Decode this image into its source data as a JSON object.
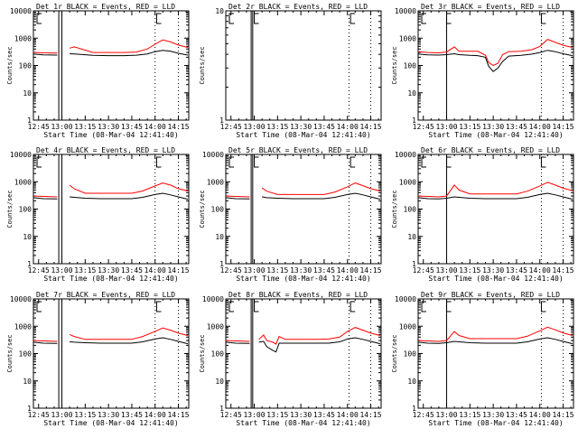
{
  "figure": {
    "xlabel": "Start Time (08-Mar-04 12:41:40)",
    "ylabel": "Counts/sec"
  },
  "chart_data": [
    {
      "type": "line",
      "title": "Det 1r BLACK = Events, RED = LLD",
      "xlabel": "Start Time (08-Mar-04 12:41:40)",
      "ylabel": "Counts/sec",
      "y_scale": "log",
      "ylim": [
        1,
        10000
      ],
      "y_ticks": [
        "1",
        "10",
        "100",
        "1000",
        "10000"
      ],
      "xlim": [
        "12:41:40",
        "14:21:40"
      ],
      "x_ticks": [
        "12:45",
        "13:00",
        "13:15",
        "13:30",
        "13:45",
        "14:00",
        "14:15"
      ],
      "x": [
        "12:41:40",
        "12:48",
        "12:57",
        "13:00",
        "13:05",
        "13:08",
        "13:20",
        "13:30",
        "13:40",
        "13:48",
        "13:55",
        "14:00",
        "14:05",
        "14:10",
        "14:15",
        "14:21"
      ],
      "series": [
        {
          "name": "Events",
          "color": "#000000",
          "values": [
            260,
            245,
            240,
            null,
            270,
            265,
            235,
            230,
            230,
            238,
            265,
            320,
            360,
            330,
            280,
            240
          ]
        },
        {
          "name": "LLD",
          "color": "#ff0000",
          "values": [
            300,
            290,
            285,
            null,
            430,
            480,
            300,
            300,
            300,
            310,
            400,
            600,
            860,
            730,
            560,
            460
          ]
        }
      ],
      "vlines_solid": [
        "12:58",
        "13:00"
      ],
      "vlines_dotted": [
        "14:00",
        "14:15"
      ],
      "markers": [
        "12:44",
        "14:01"
      ]
    },
    {
      "type": "line",
      "title": "Det 2r BLACK = Events, RED = LLD",
      "xlabel": "Start Time (08-Mar-04 12:41:40)",
      "ylabel": "Counts/sec",
      "y_scale": "log",
      "ylim": [
        1,
        10
      ],
      "y_ticks": [
        "1",
        "10"
      ],
      "xlim": [
        "12:41:40",
        "14:21:40"
      ],
      "x_ticks": [
        "12:45",
        "13:00",
        "13:15",
        "13:30",
        "13:45",
        "14:00",
        "14:15"
      ],
      "x": [],
      "series": [],
      "vlines_solid": [
        "12:58",
        "12:59"
      ],
      "vlines_dotted": [
        "14:01",
        "14:15"
      ],
      "markers": [
        "12:44",
        "13:00",
        "14:02"
      ]
    },
    {
      "type": "line",
      "title": "Det 3r BLACK = Events, RED = LLD",
      "xlabel": "Start Time (08-Mar-04 12:41:40)",
      "ylabel": "Counts/sec",
      "y_scale": "log",
      "ylim": [
        1,
        10000
      ],
      "y_ticks": [
        "1",
        "10",
        "100",
        "1000",
        "10000"
      ],
      "xlim": [
        "12:41:40",
        "14:21:40"
      ],
      "x_ticks": [
        "12:45",
        "13:00",
        "13:15",
        "13:30",
        "13:45",
        "14:00",
        "14:15"
      ],
      "x": [
        "12:41:40",
        "12:48",
        "12:55",
        "13:00",
        "13:05",
        "13:08",
        "13:15",
        "13:20",
        "13:25",
        "13:27",
        "13:30",
        "13:33",
        "13:36",
        "13:40",
        "13:48",
        "13:55",
        "14:00",
        "14:05",
        "14:10",
        "14:15",
        "14:21"
      ],
      "series": [
        {
          "name": "Events",
          "color": "#000000",
          "values": [
            260,
            245,
            240,
            250,
            270,
            250,
            235,
            230,
            200,
            95,
            60,
            80,
            140,
            220,
            235,
            260,
            300,
            360,
            320,
            270,
            230
          ]
        },
        {
          "name": "LLD",
          "color": "#ff0000",
          "values": [
            320,
            300,
            290,
            310,
            480,
            330,
            330,
            330,
            240,
            130,
            100,
            120,
            250,
            320,
            330,
            380,
            500,
            900,
            700,
            550,
            460
          ]
        }
      ],
      "vlines_solid": [
        "13:00"
      ],
      "vlines_dotted": [
        "14:01",
        "14:15"
      ],
      "markers": [
        "12:44",
        "13:00",
        "14:01"
      ]
    },
    {
      "type": "line",
      "title": "Det 4r BLACK = Events, RED = LLD",
      "xlabel": "Start Time (08-Mar-04 12:41:40)",
      "ylabel": "Counts/sec",
      "y_scale": "log",
      "ylim": [
        1,
        10000
      ],
      "y_ticks": [
        "1",
        "10",
        "100",
        "1000",
        "10000"
      ],
      "xlim": [
        "12:41:40",
        "14:21:40"
      ],
      "x_ticks": [
        "12:45",
        "13:00",
        "13:15",
        "13:30",
        "13:45",
        "14:00",
        "14:15"
      ],
      "x": [
        "12:41:40",
        "12:48",
        "12:57",
        "13:00",
        "13:05",
        "13:08",
        "13:15",
        "13:25",
        "13:35",
        "13:45",
        "13:52",
        "14:00",
        "14:05",
        "14:10",
        "14:15",
        "14:21"
      ],
      "series": [
        {
          "name": "Events",
          "color": "#000000",
          "values": [
            260,
            240,
            235,
            null,
            280,
            270,
            250,
            240,
            240,
            240,
            270,
            340,
            380,
            330,
            280,
            230
          ]
        },
        {
          "name": "LLD",
          "color": "#ff0000",
          "values": [
            300,
            290,
            280,
            null,
            750,
            550,
            380,
            380,
            380,
            380,
            460,
            700,
            900,
            750,
            560,
            460
          ]
        }
      ],
      "vlines_solid": [
        "12:58",
        "13:00"
      ],
      "vlines_dotted": [
        "14:00",
        "14:15"
      ],
      "markers": [
        "12:44",
        "14:01"
      ]
    },
    {
      "type": "line",
      "title": "Det 5r BLACK = Events, RED = LLD",
      "xlabel": "Start Time (08-Mar-04 12:41:40)",
      "ylabel": "Counts/sec",
      "y_scale": "log",
      "ylim": [
        1,
        10000
      ],
      "y_ticks": [
        "1",
        "10",
        "100",
        "1000",
        "10000"
      ],
      "xlim": [
        "12:41:40",
        "14:21:40"
      ],
      "x_ticks": [
        "12:45",
        "13:00",
        "13:15",
        "13:30",
        "13:45",
        "14:00",
        "14:15"
      ],
      "x": [
        "12:41:40",
        "12:48",
        "12:57",
        "13:00",
        "13:05",
        "13:08",
        "13:15",
        "13:25",
        "13:35",
        "13:45",
        "13:52",
        "14:00",
        "14:05",
        "14:10",
        "14:15",
        "14:21"
      ],
      "series": [
        {
          "name": "Events",
          "color": "#000000",
          "values": [
            260,
            240,
            235,
            null,
            280,
            260,
            250,
            240,
            240,
            240,
            270,
            340,
            380,
            330,
            280,
            230
          ]
        },
        {
          "name": "LLD",
          "color": "#ff0000",
          "values": [
            300,
            290,
            280,
            null,
            600,
            450,
            340,
            340,
            340,
            340,
            420,
            650,
            900,
            720,
            560,
            460
          ]
        }
      ],
      "vlines_solid": [
        "12:58",
        "12:59"
      ],
      "vlines_dotted": [
        "14:01",
        "14:15"
      ],
      "markers": [
        "12:44",
        "13:00",
        "14:02"
      ]
    },
    {
      "type": "line",
      "title": "Det 6r BLACK = Events, RED = LLD",
      "xlabel": "Start Time (08-Mar-04 12:41:40)",
      "ylabel": "Counts/sec",
      "y_scale": "log",
      "ylim": [
        1,
        10000
      ],
      "y_ticks": [
        "1",
        "10",
        "100",
        "1000",
        "10000"
      ],
      "xlim": [
        "12:41:40",
        "14:21:40"
      ],
      "x_ticks": [
        "12:45",
        "13:00",
        "13:15",
        "13:30",
        "13:45",
        "14:00",
        "14:15"
      ],
      "x": [
        "12:41:40",
        "12:48",
        "12:55",
        "13:00",
        "13:05",
        "13:08",
        "13:15",
        "13:25",
        "13:35",
        "13:45",
        "13:52",
        "14:00",
        "14:05",
        "14:10",
        "14:15",
        "14:21"
      ],
      "series": [
        {
          "name": "Events",
          "color": "#000000",
          "values": [
            260,
            240,
            235,
            250,
            280,
            270,
            250,
            240,
            240,
            240,
            270,
            340,
            380,
            330,
            280,
            230
          ]
        },
        {
          "name": "LLD",
          "color": "#ff0000",
          "values": [
            300,
            290,
            280,
            300,
            760,
            500,
            360,
            360,
            360,
            360,
            450,
            700,
            950,
            760,
            580,
            470
          ]
        }
      ],
      "vlines_solid": [
        "13:00"
      ],
      "vlines_dotted": [
        "14:01",
        "14:15"
      ],
      "markers": [
        "12:44",
        "13:00",
        "14:01"
      ]
    },
    {
      "type": "line",
      "title": "Det 7r BLACK = Events, RED = LLD",
      "xlabel": "Start Time (08-Mar-04 12:41:40)",
      "ylabel": "Counts/sec",
      "y_scale": "log",
      "ylim": [
        1,
        10000
      ],
      "y_ticks": [
        "1",
        "10",
        "100",
        "1000",
        "10000"
      ],
      "xlim": [
        "12:41:40",
        "14:21:40"
      ],
      "x_ticks": [
        "12:45",
        "13:00",
        "13:15",
        "13:30",
        "13:45",
        "14:00",
        "14:15"
      ],
      "x": [
        "12:41:40",
        "12:48",
        "12:57",
        "13:00",
        "13:05",
        "13:08",
        "13:15",
        "13:25",
        "13:35",
        "13:45",
        "13:52",
        "14:00",
        "14:05",
        "14:10",
        "14:15",
        "14:21"
      ],
      "series": [
        {
          "name": "Events",
          "color": "#000000",
          "values": [
            260,
            240,
            235,
            null,
            270,
            260,
            250,
            240,
            240,
            240,
            270,
            340,
            380,
            330,
            280,
            230
          ]
        },
        {
          "name": "LLD",
          "color": "#ff0000",
          "values": [
            300,
            290,
            280,
            null,
            500,
            420,
            330,
            330,
            330,
            330,
            420,
            650,
            860,
            720,
            560,
            460
          ]
        }
      ],
      "vlines_solid": [
        "12:58",
        "13:00"
      ],
      "vlines_dotted": [
        "14:00",
        "14:15"
      ],
      "markers": [
        "12:44",
        "14:01"
      ]
    },
    {
      "type": "line",
      "title": "Det 8r BLACK = Events, RED = LLD",
      "xlabel": "Start Time (08-Mar-04 12:41:40)",
      "ylabel": "Counts/sec",
      "y_scale": "log",
      "ylim": [
        1,
        10000
      ],
      "y_ticks": [
        "1",
        "10",
        "100",
        "1000",
        "10000"
      ],
      "xlim": [
        "12:41:40",
        "14:21:40"
      ],
      "x_ticks": [
        "12:45",
        "13:00",
        "13:15",
        "13:30",
        "13:45",
        "14:00",
        "14:15"
      ],
      "x": [
        "12:41:40",
        "12:48",
        "12:57",
        "13:00",
        "13:03",
        "13:06",
        "13:08",
        "13:12",
        "13:14",
        "13:16",
        "13:20",
        "13:30",
        "13:40",
        "13:48",
        "13:55",
        "14:00",
        "14:05",
        "14:10",
        "14:15",
        "14:21"
      ],
      "series": [
        {
          "name": "Events",
          "color": "#000000",
          "values": [
            260,
            240,
            235,
            null,
            260,
            280,
            180,
            130,
            115,
            240,
            240,
            240,
            240,
            240,
            270,
            340,
            380,
            330,
            280,
            230
          ]
        },
        {
          "name": "LLD",
          "color": "#ff0000",
          "values": [
            300,
            290,
            280,
            null,
            330,
            480,
            300,
            260,
            220,
            420,
            330,
            330,
            330,
            340,
            400,
            640,
            900,
            720,
            560,
            460
          ]
        }
      ],
      "vlines_solid": [
        "12:58",
        "12:59"
      ],
      "vlines_dotted": [
        "14:01",
        "14:15"
      ],
      "markers": [
        "12:44",
        "13:00",
        "14:02"
      ]
    },
    {
      "type": "line",
      "title": "Det 9r BLACK = Events, RED = LLD",
      "xlabel": "Start Time (08-Mar-04 12:41:40)",
      "ylabel": "Counts/sec",
      "y_scale": "log",
      "ylim": [
        1,
        10000
      ],
      "y_ticks": [
        "1",
        "10",
        "100",
        "1000",
        "10000"
      ],
      "xlim": [
        "12:41:40",
        "14:21:40"
      ],
      "x_ticks": [
        "12:45",
        "13:00",
        "13:15",
        "13:30",
        "13:45",
        "14:00",
        "14:15"
      ],
      "x": [
        "12:41:40",
        "12:48",
        "12:55",
        "13:00",
        "13:05",
        "13:08",
        "13:15",
        "13:25",
        "13:35",
        "13:45",
        "13:52",
        "14:00",
        "14:05",
        "14:10",
        "14:15",
        "14:21"
      ],
      "series": [
        {
          "name": "Events",
          "color": "#000000",
          "values": [
            260,
            240,
            235,
            250,
            280,
            270,
            250,
            240,
            240,
            240,
            270,
            340,
            380,
            330,
            280,
            230
          ]
        },
        {
          "name": "LLD",
          "color": "#ff0000",
          "values": [
            300,
            290,
            280,
            300,
            640,
            460,
            350,
            350,
            350,
            350,
            430,
            680,
            920,
            740,
            570,
            460
          ]
        }
      ],
      "vlines_solid": [
        "13:00"
      ],
      "vlines_dotted": [
        "14:01",
        "14:15"
      ],
      "markers": [
        "12:44",
        "13:00",
        "14:01"
      ]
    }
  ]
}
